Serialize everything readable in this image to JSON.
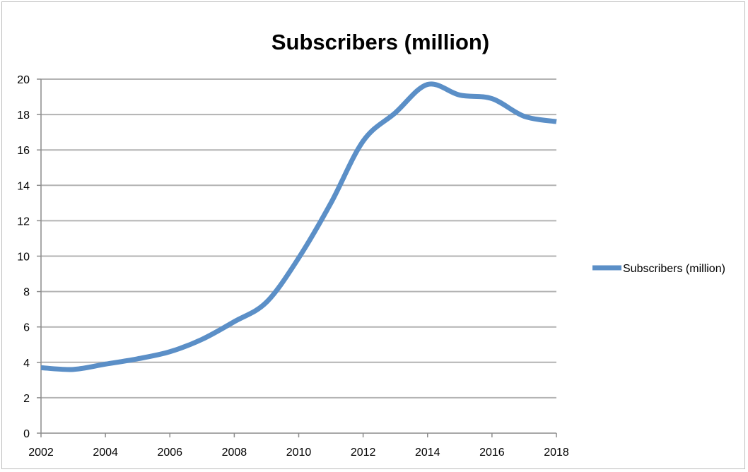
{
  "chart_data": {
    "type": "line",
    "title": "Subscribers (million)",
    "xlabel": "",
    "ylabel": "",
    "xlim": [
      2002,
      2018
    ],
    "ylim": [
      0,
      20
    ],
    "x_ticks": [
      2002,
      2004,
      2006,
      2008,
      2010,
      2012,
      2014,
      2016,
      2018
    ],
    "y_ticks": [
      0,
      2,
      4,
      6,
      8,
      10,
      12,
      14,
      16,
      18,
      20
    ],
    "grid": true,
    "legend": "right",
    "x": [
      2002,
      2003,
      2004,
      2005,
      2006,
      2007,
      2008,
      2009,
      2010,
      2011,
      2012,
      2013,
      2014,
      2015,
      2016,
      2017,
      2018
    ],
    "series": [
      {
        "name": "Subscribers (million)",
        "color": "#5b8fc7",
        "values": [
          3.7,
          3.6,
          3.9,
          4.2,
          4.6,
          5.3,
          6.3,
          7.4,
          9.9,
          13.0,
          16.5,
          18.1,
          19.7,
          19.1,
          18.9,
          17.9,
          17.6
        ]
      }
    ]
  }
}
